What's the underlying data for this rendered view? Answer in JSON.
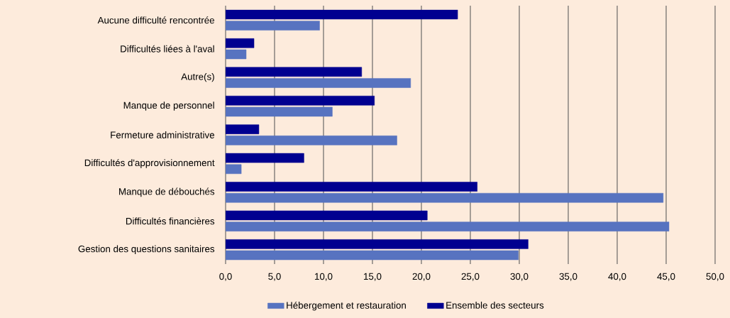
{
  "chart_data": {
    "type": "bar",
    "orientation": "horizontal",
    "categories": [
      "Aucune difficulté rencontrée",
      "Difficultés liées à l'aval",
      "Autre(s)",
      "Manque de personnel",
      "Fermeture administrative",
      "Difficultés d'approvisionnement",
      "Manque de débouchés",
      "Difficultés financières",
      "Gestion des questions sanitaires"
    ],
    "series": [
      {
        "name": "Hébergement et restauration",
        "color": "#5773c0",
        "values": [
          9.6,
          2.1,
          18.9,
          10.9,
          17.5,
          1.6,
          44.7,
          45.3,
          29.9
        ]
      },
      {
        "name": "Ensemble des secteurs",
        "color": "#000090",
        "values": [
          23.7,
          2.9,
          13.9,
          15.2,
          3.4,
          8.0,
          25.7,
          20.6,
          30.9
        ]
      }
    ],
    "xlim": [
      0,
      50
    ],
    "xticks": [
      {
        "value": 0,
        "label": "0,0"
      },
      {
        "value": 5,
        "label": "5,0"
      },
      {
        "value": 10,
        "label": "10,0"
      },
      {
        "value": 15,
        "label": "15,0"
      },
      {
        "value": 20,
        "label": "20,0"
      },
      {
        "value": 25,
        "label": "25,0"
      },
      {
        "value": 30,
        "label": "30,0"
      },
      {
        "value": 35,
        "label": "35,0"
      },
      {
        "value": 40,
        "label": "40,0"
      },
      {
        "value": 45,
        "label": "45,0"
      },
      {
        "value": 50,
        "label": "50,0"
      }
    ],
    "grid": "x",
    "legend": "bottom"
  }
}
